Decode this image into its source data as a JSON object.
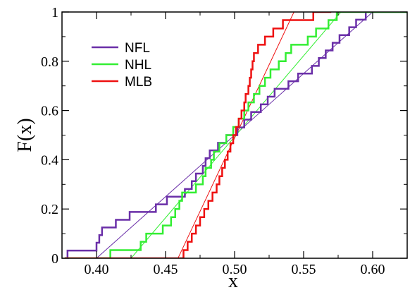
{
  "chart_data": {
    "type": "line",
    "xlabel": "x",
    "ylabel": "F(x)",
    "xlim": [
      0.375,
      0.625
    ],
    "ylim": [
      0,
      1
    ],
    "x_ticks": [
      "0.40",
      "0.45",
      "0.50",
      "0.55",
      "0.60"
    ],
    "x_tick_values": [
      0.4,
      0.45,
      0.5,
      0.55,
      0.6
    ],
    "y_ticks": [
      "0",
      "0.2",
      "0.4",
      "0.6",
      "0.8",
      "1"
    ],
    "y_tick_values": [
      0,
      0.2,
      0.4,
      0.6,
      0.8,
      1.0
    ],
    "legend_position": "top-left",
    "series": [
      {
        "name": "NFL",
        "color": "#6a2fa8",
        "kind": "step",
        "points": [
          [
            0.377,
            0
          ],
          [
            0.379,
            0
          ],
          [
            0.379,
            0.031
          ],
          [
            0.4,
            0.031
          ],
          [
            0.4,
            0.063
          ],
          [
            0.402,
            0.063
          ],
          [
            0.402,
            0.094
          ],
          [
            0.404,
            0.094
          ],
          [
            0.404,
            0.125
          ],
          [
            0.407,
            0.125
          ],
          [
            0.407,
            0.125
          ],
          [
            0.414,
            0.125
          ],
          [
            0.414,
            0.156
          ],
          [
            0.424,
            0.156
          ],
          [
            0.424,
            0.188
          ],
          [
            0.443,
            0.188
          ],
          [
            0.443,
            0.219
          ],
          [
            0.451,
            0.219
          ],
          [
            0.451,
            0.25
          ],
          [
            0.464,
            0.25
          ],
          [
            0.464,
            0.281
          ],
          [
            0.469,
            0.281
          ],
          [
            0.469,
            0.313
          ],
          [
            0.472,
            0.313
          ],
          [
            0.472,
            0.344
          ],
          [
            0.477,
            0.344
          ],
          [
            0.477,
            0.375
          ],
          [
            0.479,
            0.375
          ],
          [
            0.479,
            0.406
          ],
          [
            0.482,
            0.406
          ],
          [
            0.482,
            0.438
          ],
          [
            0.488,
            0.438
          ],
          [
            0.488,
            0.469
          ],
          [
            0.494,
            0.469
          ],
          [
            0.494,
            0.5
          ],
          [
            0.502,
            0.5
          ],
          [
            0.502,
            0.531
          ],
          [
            0.507,
            0.531
          ],
          [
            0.507,
            0.563
          ],
          [
            0.512,
            0.563
          ],
          [
            0.512,
            0.594
          ],
          [
            0.519,
            0.594
          ],
          [
            0.519,
            0.625
          ],
          [
            0.524,
            0.625
          ],
          [
            0.524,
            0.656
          ],
          [
            0.529,
            0.656
          ],
          [
            0.529,
            0.688
          ],
          [
            0.539,
            0.688
          ],
          [
            0.539,
            0.719
          ],
          [
            0.546,
            0.719
          ],
          [
            0.546,
            0.75
          ],
          [
            0.556,
            0.75
          ],
          [
            0.556,
            0.781
          ],
          [
            0.561,
            0.781
          ],
          [
            0.561,
            0.813
          ],
          [
            0.566,
            0.813
          ],
          [
            0.566,
            0.844
          ],
          [
            0.571,
            0.844
          ],
          [
            0.571,
            0.875
          ],
          [
            0.576,
            0.875
          ],
          [
            0.576,
            0.906
          ],
          [
            0.583,
            0.906
          ],
          [
            0.583,
            0.938
          ],
          [
            0.588,
            0.938
          ],
          [
            0.588,
            0.969
          ],
          [
            0.595,
            0.969
          ],
          [
            0.595,
            1.0
          ],
          [
            0.625,
            1.0
          ]
        ]
      },
      {
        "name": "NHL",
        "color": "#33ee33",
        "kind": "step",
        "points": [
          [
            0.377,
            0
          ],
          [
            0.41,
            0
          ],
          [
            0.41,
            0.033
          ],
          [
            0.432,
            0.033
          ],
          [
            0.432,
            0.067
          ],
          [
            0.436,
            0.067
          ],
          [
            0.436,
            0.1
          ],
          [
            0.448,
            0.1
          ],
          [
            0.448,
            0.133
          ],
          [
            0.454,
            0.133
          ],
          [
            0.454,
            0.167
          ],
          [
            0.457,
            0.167
          ],
          [
            0.457,
            0.2
          ],
          [
            0.46,
            0.2
          ],
          [
            0.46,
            0.233
          ],
          [
            0.462,
            0.233
          ],
          [
            0.462,
            0.267
          ],
          [
            0.472,
            0.267
          ],
          [
            0.472,
            0.3
          ],
          [
            0.477,
            0.3
          ],
          [
            0.477,
            0.333
          ],
          [
            0.479,
            0.333
          ],
          [
            0.479,
            0.367
          ],
          [
            0.483,
            0.367
          ],
          [
            0.483,
            0.4
          ],
          [
            0.485,
            0.4
          ],
          [
            0.485,
            0.433
          ],
          [
            0.489,
            0.433
          ],
          [
            0.489,
            0.467
          ],
          [
            0.494,
            0.467
          ],
          [
            0.494,
            0.5
          ],
          [
            0.499,
            0.5
          ],
          [
            0.499,
            0.533
          ],
          [
            0.503,
            0.533
          ],
          [
            0.503,
            0.567
          ],
          [
            0.507,
            0.567
          ],
          [
            0.507,
            0.6
          ],
          [
            0.51,
            0.6
          ],
          [
            0.51,
            0.633
          ],
          [
            0.514,
            0.633
          ],
          [
            0.514,
            0.667
          ],
          [
            0.518,
            0.667
          ],
          [
            0.518,
            0.7
          ],
          [
            0.522,
            0.7
          ],
          [
            0.522,
            0.733
          ],
          [
            0.526,
            0.733
          ],
          [
            0.526,
            0.767
          ],
          [
            0.532,
            0.767
          ],
          [
            0.532,
            0.8
          ],
          [
            0.537,
            0.8
          ],
          [
            0.537,
            0.833
          ],
          [
            0.541,
            0.833
          ],
          [
            0.541,
            0.867
          ],
          [
            0.553,
            0.867
          ],
          [
            0.553,
            0.9
          ],
          [
            0.559,
            0.9
          ],
          [
            0.559,
            0.933
          ],
          [
            0.568,
            0.933
          ],
          [
            0.568,
            0.967
          ],
          [
            0.574,
            0.967
          ],
          [
            0.574,
            1.0
          ],
          [
            0.625,
            1.0
          ]
        ]
      },
      {
        "name": "MLB",
        "color": "#ee1111",
        "kind": "step",
        "points": [
          [
            0.377,
            0
          ],
          [
            0.463,
            0
          ],
          [
            0.463,
            0.033
          ],
          [
            0.466,
            0.033
          ],
          [
            0.466,
            0.067
          ],
          [
            0.469,
            0.067
          ],
          [
            0.469,
            0.1
          ],
          [
            0.472,
            0.1
          ],
          [
            0.472,
            0.133
          ],
          [
            0.475,
            0.133
          ],
          [
            0.475,
            0.167
          ],
          [
            0.478,
            0.167
          ],
          [
            0.478,
            0.2
          ],
          [
            0.481,
            0.2
          ],
          [
            0.481,
            0.233
          ],
          [
            0.484,
            0.233
          ],
          [
            0.484,
            0.267
          ],
          [
            0.487,
            0.267
          ],
          [
            0.487,
            0.3
          ],
          [
            0.489,
            0.3
          ],
          [
            0.489,
            0.333
          ],
          [
            0.491,
            0.333
          ],
          [
            0.491,
            0.367
          ],
          [
            0.493,
            0.367
          ],
          [
            0.493,
            0.4
          ],
          [
            0.495,
            0.4
          ],
          [
            0.495,
            0.433
          ],
          [
            0.497,
            0.433
          ],
          [
            0.497,
            0.467
          ],
          [
            0.499,
            0.467
          ],
          [
            0.499,
            0.5
          ],
          [
            0.501,
            0.5
          ],
          [
            0.501,
            0.533
          ],
          [
            0.503,
            0.533
          ],
          [
            0.503,
            0.567
          ],
          [
            0.505,
            0.567
          ],
          [
            0.505,
            0.6
          ],
          [
            0.507,
            0.6
          ],
          [
            0.507,
            0.633
          ],
          [
            0.508,
            0.633
          ],
          [
            0.508,
            0.667
          ],
          [
            0.51,
            0.667
          ],
          [
            0.51,
            0.7
          ],
          [
            0.511,
            0.7
          ],
          [
            0.511,
            0.733
          ],
          [
            0.512,
            0.733
          ],
          [
            0.512,
            0.767
          ],
          [
            0.513,
            0.767
          ],
          [
            0.513,
            0.8
          ],
          [
            0.514,
            0.8
          ],
          [
            0.514,
            0.833
          ],
          [
            0.517,
            0.833
          ],
          [
            0.517,
            0.867
          ],
          [
            0.522,
            0.867
          ],
          [
            0.522,
            0.9
          ],
          [
            0.528,
            0.9
          ],
          [
            0.528,
            0.933
          ],
          [
            0.535,
            0.933
          ],
          [
            0.535,
            0.967
          ],
          [
            0.557,
            0.967
          ],
          [
            0.557,
            1.0
          ],
          [
            0.57,
            1.0
          ]
        ]
      }
    ],
    "fits": [
      {
        "series": "NFL",
        "color": "#6a2fa8",
        "x": [
          0.4,
          0.6
        ],
        "y": [
          0,
          1
        ]
      },
      {
        "series": "NHL",
        "color": "#33ee33",
        "x": [
          0.425,
          0.577
        ],
        "y": [
          0,
          1
        ]
      },
      {
        "series": "MLB",
        "color": "#ee1111",
        "x": [
          0.459,
          0.543
        ],
        "y": [
          0,
          1
        ]
      }
    ]
  }
}
